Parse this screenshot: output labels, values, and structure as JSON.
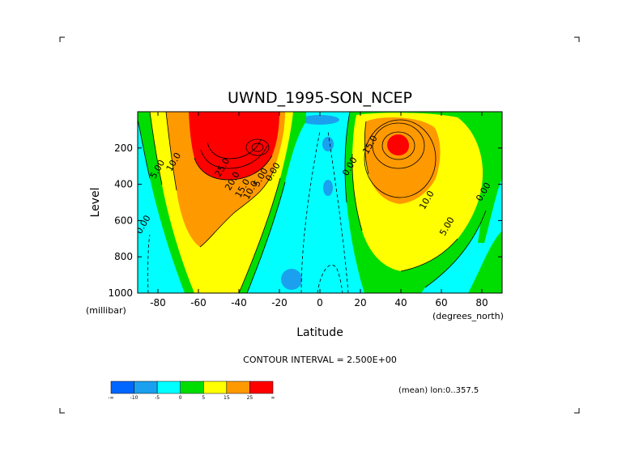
{
  "chart_data": {
    "type": "contour",
    "title": "UWND_1995-SON_NCEP",
    "xlabel": "Latitude",
    "x_units": "(degrees_north)",
    "ylabel": "Level",
    "y_units": "(millibar)",
    "xlim": [
      -90,
      90
    ],
    "ylim": [
      1000,
      0
    ],
    "y_scale": "linear, inverted",
    "x_ticks": [
      -80,
      -60,
      -40,
      -20,
      0,
      20,
      40,
      60,
      80
    ],
    "y_ticks": [
      200,
      400,
      600,
      800,
      1000
    ],
    "contour_interval_label": "CONTOUR INTERVAL = 2.500E+00",
    "mean_note": "(mean) lon:0..357.5",
    "colorbar": {
      "ticks": [
        "-∞",
        "-10",
        "-5",
        "0",
        "5",
        "15",
        "25",
        "∞"
      ],
      "colors": [
        "#0066ff",
        "#1aa0ee",
        "#00ffff",
        "#00dd00",
        "#ffff00",
        "#ff9900",
        "#ff0000"
      ]
    },
    "contour_labels": [
      {
        "text": "25.0",
        "x": -47,
        "y": 315
      },
      {
        "text": "20.0",
        "x": -42,
        "y": 390
      },
      {
        "text": "15.0",
        "x": -37,
        "y": 430
      },
      {
        "text": "10.0",
        "x": -33,
        "y": 440
      },
      {
        "text": "5.00",
        "x": -28,
        "y": 370
      },
      {
        "text": "0.00",
        "x": -22,
        "y": 340
      },
      {
        "text": "10.0",
        "x": -71,
        "y": 285
      },
      {
        "text": "5.00",
        "x": -79,
        "y": 325
      },
      {
        "text": "0.00",
        "x": -86,
        "y": 630
      },
      {
        "text": "0.00",
        "x": 16,
        "y": 310
      },
      {
        "text": "15.0",
        "x": 26,
        "y": 190
      },
      {
        "text": "10.0",
        "x": 54,
        "y": 495
      },
      {
        "text": "5.00",
        "x": 64,
        "y": 640
      },
      {
        "text": "0.00",
        "x": 82,
        "y": 450
      }
    ],
    "jets": [
      {
        "hemisphere": "south",
        "max_lat": -32,
        "max_level": 200,
        "max_value": 30,
        "region": "-90..-15"
      },
      {
        "hemisphere": "north",
        "max_lat": 40,
        "max_level": 200,
        "max_value": 25,
        "region": "20..85"
      }
    ],
    "easterly_band": {
      "lat_range": [
        -25,
        25
      ],
      "min_value": -10
    }
  }
}
